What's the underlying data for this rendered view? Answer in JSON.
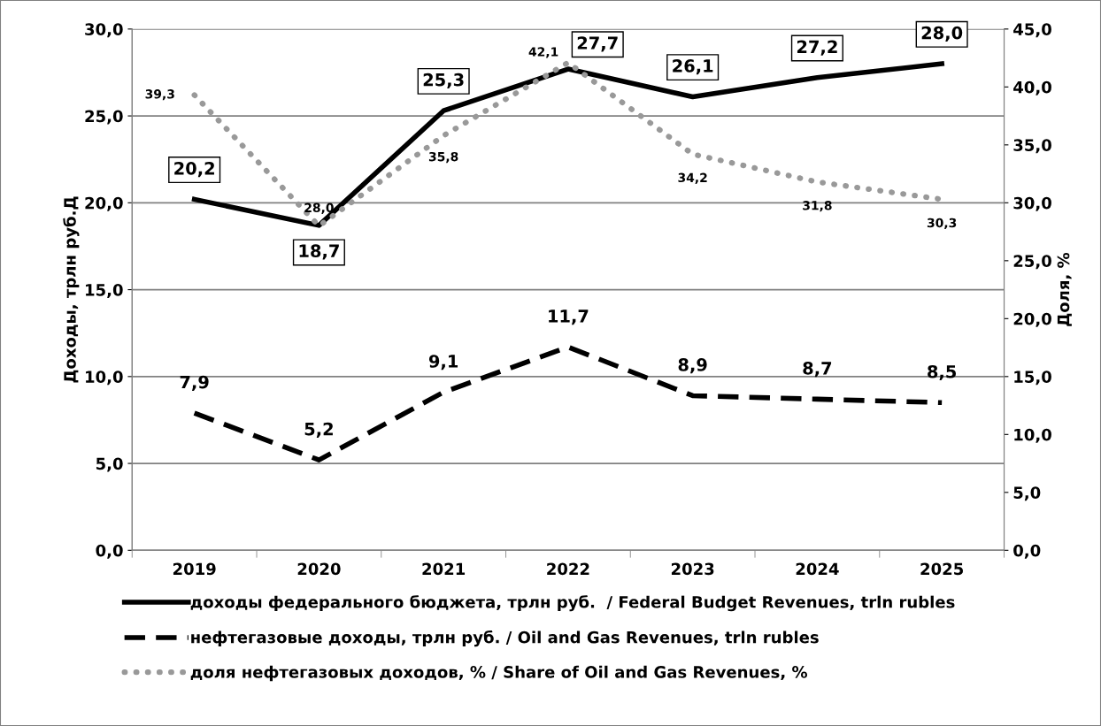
{
  "chart_data": {
    "type": "line",
    "ylabel": "Доходы, трлн руб.Д",
    "y2label": "Доля, %",
    "categories": [
      "2019",
      "2020",
      "2021",
      "2022",
      "2023",
      "2024",
      "2025"
    ],
    "series": [
      {
        "name": "доходы федерального бюджета, трлн руб.  / Federal Budget Revenues, trln rubles",
        "color": "#000000",
        "line_style": "solid",
        "values": [
          20.2,
          18.7,
          25.3,
          27.7,
          26.1,
          27.2,
          28.0
        ],
        "value_labels": [
          "20,2",
          "18,7",
          "25,3",
          "27,7",
          "26,1",
          "27,2",
          "28,0"
        ]
      },
      {
        "name": "нефтегазовые доходы, трлн руб. / Oil and Gas Revenues, trln rubles",
        "color": "#000000",
        "line_style": "dashed",
        "values": [
          7.9,
          5.2,
          9.1,
          11.7,
          8.9,
          8.7,
          8.5
        ],
        "value_labels": [
          "7,9",
          "5,2",
          "9,1",
          "11,7",
          "8,9",
          "8,7",
          "8,5"
        ]
      },
      {
        "name": "доля нефтегазовых доходов, % / Share of Oil and Gas Revenues, %",
        "color": "#999999",
        "line_style": "dotted",
        "axis": "y2",
        "values": [
          39.3,
          28.0,
          35.8,
          42.1,
          34.2,
          31.8,
          30.3
        ],
        "value_labels": [
          "39,3",
          "28,0",
          "35,8",
          "42,1",
          "34,2",
          "31,8",
          "30,3"
        ]
      }
    ],
    "ylim": [
      0,
      30
    ],
    "yticks": [
      {
        "value": 0,
        "label": "0,0"
      },
      {
        "value": 5,
        "label": "5,0"
      },
      {
        "value": 10,
        "label": "10,0"
      },
      {
        "value": 15,
        "label": "15,0"
      },
      {
        "value": 20,
        "label": "20,0"
      },
      {
        "value": 25,
        "label": "25,0"
      },
      {
        "value": 30,
        "label": "30,0"
      }
    ],
    "y2lim": [
      0,
      45
    ],
    "y2ticks": [
      {
        "value": 0,
        "label": "0,0"
      },
      {
        "value": 5,
        "label": "5,0"
      },
      {
        "value": 10,
        "label": "10,0"
      },
      {
        "value": 15,
        "label": "15,0"
      },
      {
        "value": 20,
        "label": "20,0"
      },
      {
        "value": 25,
        "label": "25,0"
      },
      {
        "value": 30,
        "label": "30,0"
      },
      {
        "value": 35,
        "label": "35,0"
      },
      {
        "value": 40,
        "label": "40,0"
      },
      {
        "value": 45,
        "label": "45,0"
      }
    ],
    "grid": "y",
    "legend": "bottom",
    "marker": "none"
  }
}
